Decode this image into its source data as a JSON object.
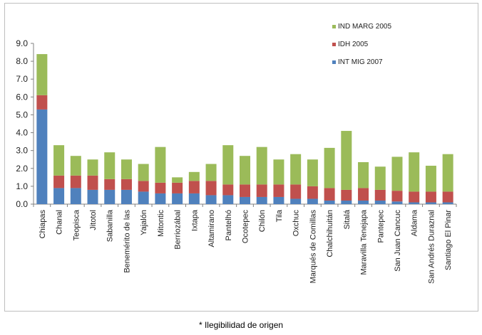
{
  "chart_data": {
    "type": "bar",
    "stacked": true,
    "categories": [
      "Chiapas",
      "Chanal",
      "Teopisca",
      "Jitotol",
      "Sabanilla",
      "Benemérito de las",
      "Yajalón",
      "Mitontic",
      "Berriozábal",
      "Ixtapa",
      "Altamirano",
      "Pantelhó",
      "Ocotepec",
      "Chilón",
      "Tila",
      "Oxchuc",
      "Marqués de Comillas",
      "Chalchihuitán",
      "Sitalá",
      "Maravilla Tenejapa",
      "Pantepec",
      "San Juan Cancuc",
      "Aldama",
      "San Andrés Duraznal",
      "Santiago El Pinar"
    ],
    "series": [
      {
        "name": "INT MIG 2007",
        "color": "#4f81bd",
        "values": [
          5.3,
          0.9,
          0.9,
          0.8,
          0.8,
          0.8,
          0.7,
          0.6,
          0.6,
          0.6,
          0.5,
          0.5,
          0.4,
          0.4,
          0.4,
          0.3,
          0.3,
          0.2,
          0.2,
          0.2,
          0.2,
          0.15,
          0.1,
          0.1,
          0.1
        ]
      },
      {
        "name": "IDH 2005",
        "color": "#c0504d",
        "values": [
          0.8,
          0.7,
          0.7,
          0.8,
          0.6,
          0.6,
          0.6,
          0.6,
          0.6,
          0.7,
          0.8,
          0.6,
          0.7,
          0.7,
          0.7,
          0.8,
          0.7,
          0.7,
          0.6,
          0.7,
          0.6,
          0.6,
          0.6,
          0.6,
          0.6
        ]
      },
      {
        "name": "IND MARG 2005",
        "color": "#9bbb59",
        "values": [
          2.3,
          1.7,
          1.1,
          0.9,
          1.5,
          1.1,
          0.95,
          2.0,
          0.3,
          0.5,
          0.95,
          2.2,
          1.6,
          2.1,
          1.4,
          1.7,
          1.5,
          2.25,
          3.3,
          1.45,
          1.3,
          1.9,
          2.2,
          1.45,
          2.1
        ]
      }
    ],
    "ylim": [
      0,
      9
    ],
    "yticks": [
      "0.0",
      "1.0",
      "2.0",
      "3.0",
      "4.0",
      "5.0",
      "6.0",
      "7.0",
      "8.0",
      "9.0"
    ],
    "grid": false,
    "legend_position": "top-right"
  },
  "caption": "* Ilegibilidad de origen"
}
